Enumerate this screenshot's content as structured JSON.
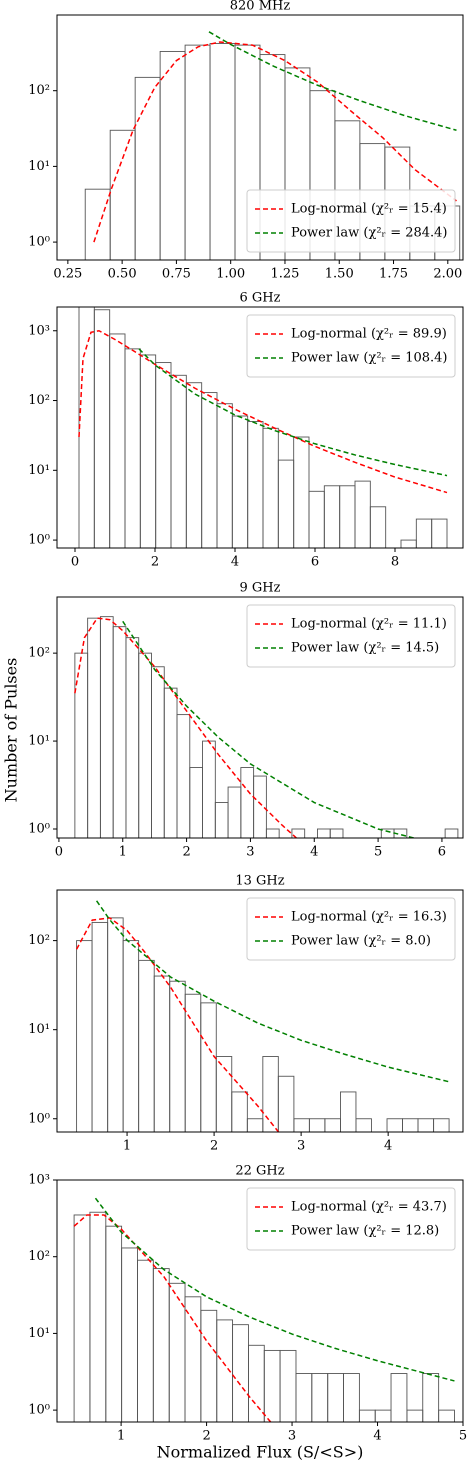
{
  "chart_data": [
    {
      "type": "histogram",
      "title": "820 MHz",
      "log_y": true,
      "legend": "lower right",
      "hist_color": "#555555",
      "bins": [
        0.33,
        0.445,
        0.56,
        0.675,
        0.79,
        0.905,
        1.02,
        1.135,
        1.25,
        1.365,
        1.48,
        1.595,
        1.71,
        1.825,
        1.94,
        2.055
      ],
      "counts": [
        5,
        30,
        150,
        330,
        400,
        420,
        400,
        300,
        200,
        100,
        40,
        20,
        18,
        3,
        3
      ],
      "series": [
        {
          "name": "Log-normal (χ²ᵣ = 15.4)",
          "color": "#ff0000",
          "x": [
            0.37,
            0.45,
            0.55,
            0.65,
            0.75,
            0.85,
            0.95,
            1.1,
            1.25,
            1.4,
            1.55,
            1.7,
            1.85,
            2.04
          ],
          "values": [
            1,
            5,
            30,
            110,
            250,
            380,
            440,
            400,
            250,
            130,
            55,
            24,
            9,
            3.5
          ]
        },
        {
          "name": "Power law (χ²ᵣ = 284.4)",
          "color": "#008000",
          "x": [
            0.9,
            1.0,
            1.2,
            1.4,
            1.6,
            1.8,
            2.04
          ],
          "values": [
            600,
            408,
            209,
            118,
            73,
            47,
            30
          ]
        }
      ],
      "xlim": [
        0.2,
        2.07
      ],
      "xticks": [
        0.25,
        {
          "value": 0.5,
          "label": "0.50"
        },
        0.75,
        {
          "value": 1,
          "label": "1.00"
        },
        1.25,
        {
          "value": 1.5,
          "label": "1.50"
        },
        1.75,
        {
          "value": 2,
          "label": "2.00"
        }
      ],
      "ylim": [
        0.58,
        1000
      ],
      "yticks": [
        {
          "value": 1,
          "label": "10⁰"
        },
        {
          "value": 10,
          "label": "10¹"
        },
        {
          "value": 100,
          "label": "10²"
        }
      ]
    },
    {
      "type": "histogram",
      "title": "6 GHz",
      "log_y": true,
      "legend": "upper right",
      "hist_color": "#555555",
      "bins": [
        0.1,
        0.483,
        0.867,
        1.25,
        1.633,
        2.017,
        2.4,
        2.783,
        3.167,
        3.55,
        3.933,
        4.317,
        4.7,
        5.083,
        5.467,
        5.85,
        6.233,
        6.617,
        7,
        7.383,
        7.767,
        8.15,
        8.533,
        8.917,
        9.3
      ],
      "counts": [
        3000,
        2000,
        900,
        550,
        450,
        350,
        230,
        180,
        130,
        90,
        60,
        50,
        40,
        14,
        30,
        5,
        6,
        6,
        7,
        3,
        0,
        1,
        2,
        2
      ],
      "series": [
        {
          "name": "Log-normal (χ²ᵣ = 89.9)",
          "color": "#ff0000",
          "x": [
            0.1,
            0.2,
            0.4,
            0.6,
            1,
            1.5,
            2,
            3,
            4,
            5,
            6,
            7,
            8,
            9.3
          ],
          "values": [
            30,
            400,
            950,
            1000,
            750,
            500,
            330,
            150,
            75,
            40,
            22,
            13,
            8,
            4.8
          ]
        },
        {
          "name": "Power law (χ²ᵣ = 108.4)",
          "color": "#008000",
          "x": [
            1.6,
            2,
            3,
            4,
            5,
            6,
            7,
            8,
            9.3
          ],
          "values": [
            550,
            323,
            124,
            62,
            37,
            24,
            16.6,
            12.1,
            8.4
          ]
        }
      ],
      "xlim": [
        -0.45,
        9.7
      ],
      "xticks": [
        0,
        2,
        4,
        6,
        8
      ],
      "ylim": [
        0.77,
        2190
      ],
      "yticks": [
        {
          "value": 1,
          "label": "10⁰"
        },
        {
          "value": 10,
          "label": "10¹"
        },
        {
          "value": 100,
          "label": "10²"
        },
        {
          "value": 1000,
          "label": "10³"
        }
      ]
    },
    {
      "type": "histogram",
      "title": "9 GHz",
      "log_y": true,
      "legend": "upper right",
      "hist_color": "#555555",
      "ylabel": "Number of Pulses",
      "bins": [
        0.25,
        0.45,
        0.65,
        0.85,
        1.05,
        1.25,
        1.45,
        1.65,
        1.85,
        2.05,
        2.25,
        2.45,
        2.65,
        2.85,
        3.05,
        3.25,
        3.45,
        3.65,
        3.85,
        4.05,
        4.25,
        4.45,
        4.65,
        4.85,
        5.05,
        5.25,
        5.45,
        5.65,
        5.85,
        6.05,
        6.25
      ],
      "counts": [
        100,
        250,
        260,
        200,
        150,
        100,
        70,
        40,
        20,
        5,
        10,
        2,
        3,
        5,
        4,
        1,
        0,
        1,
        0,
        1,
        1,
        0,
        0,
        0,
        1,
        1,
        0,
        0,
        0,
        1
      ],
      "series": [
        {
          "name": "Log-normal (χ²ᵣ = 11.1)",
          "color": "#ff0000",
          "x": [
            0.25,
            0.4,
            0.6,
            0.8,
            1,
            1.5,
            2,
            2.5,
            3,
            3.5,
            3.8
          ],
          "values": [
            35,
            150,
            250,
            240,
            180,
            70,
            22,
            7,
            2.5,
            1.1,
            0.7
          ]
        },
        {
          "name": "Power law (χ²ᵣ = 14.5)",
          "color": "#008000",
          "x": [
            1,
            1.5,
            2,
            2.5,
            3,
            4,
            5,
            5.85
          ],
          "values": [
            230,
            65,
            25,
            11,
            5.5,
            2,
            1,
            0.7
          ]
        }
      ],
      "xlim": [
        -0.03,
        6.33
      ],
      "xticks": [
        0,
        1,
        2,
        3,
        4,
        5,
        6
      ],
      "ylim": [
        0.79,
        435
      ],
      "yticks": [
        {
          "value": 1,
          "label": "10⁰"
        },
        {
          "value": 10,
          "label": "10¹"
        },
        {
          "value": 100,
          "label": "10²"
        }
      ]
    },
    {
      "type": "histogram",
      "title": "13 GHz",
      "log_y": true,
      "legend": "upper right",
      "hist_color": "#555555",
      "bins": [
        0.42,
        0.598,
        0.777,
        0.955,
        1.133,
        1.312,
        1.49,
        1.668,
        1.847,
        2.025,
        2.203,
        2.382,
        2.56,
        2.738,
        2.917,
        3.095,
        3.273,
        3.452,
        3.63,
        3.808,
        3.987,
        4.165,
        4.343,
        4.522,
        4.7
      ],
      "counts": [
        100,
        160,
        180,
        100,
        60,
        40,
        35,
        25,
        20,
        5,
        2,
        1,
        5,
        3,
        1,
        1,
        1,
        2,
        1,
        0,
        1,
        1,
        1,
        1
      ],
      "series": [
        {
          "name": "Log-normal (χ²ᵣ = 16.3)",
          "color": "#ff0000",
          "x": [
            0.42,
            0.6,
            0.8,
            1,
            1.2,
            1.5,
            2,
            2.5,
            2.8
          ],
          "values": [
            80,
            170,
            180,
            130,
            75,
            30,
            5,
            1.4,
            0.6
          ]
        },
        {
          "name": "Power law (χ²ᵣ = 8.0)",
          "color": "#008000",
          "x": [
            0.65,
            0.8,
            1,
            1.5,
            2,
            2.5,
            3,
            3.5,
            4,
            4.7
          ],
          "values": [
            280,
            172,
            101,
            39,
            20.9,
            11.9,
            7.6,
            5.3,
            3.8,
            2.6
          ]
        }
      ],
      "xlim": [
        0.195,
        4.86
      ],
      "xticks": [
        1,
        2,
        3,
        4
      ],
      "ylim": [
        0.71,
        370
      ],
      "yticks": [
        {
          "value": 1,
          "label": "10⁰"
        },
        {
          "value": 10,
          "label": "10¹"
        },
        {
          "value": 100,
          "label": "10²"
        }
      ]
    },
    {
      "type": "histogram",
      "title": "22 GHz",
      "log_y": true,
      "legend": "upper right",
      "hist_color": "#555555",
      "xlabel": "Normalized Flux (S/<S>)",
      "bins": [
        0.45,
        0.635,
        0.821,
        1.006,
        1.192,
        1.377,
        1.563,
        1.748,
        1.933,
        2.119,
        2.304,
        2.49,
        2.675,
        2.86,
        3.046,
        3.231,
        3.417,
        3.602,
        3.788,
        3.973,
        4.158,
        4.344,
        4.529,
        4.715,
        4.9
      ],
      "counts": [
        350,
        380,
        250,
        130,
        90,
        70,
        45,
        30,
        20,
        15,
        13,
        7,
        6,
        6,
        3,
        3,
        3,
        3,
        1,
        1,
        3,
        1,
        3,
        1
      ],
      "series": [
        {
          "name": "Log-normal (χ²ᵣ = 43.7)",
          "color": "#ff0000",
          "x": [
            0.45,
            0.6,
            0.8,
            1,
            1.2,
            1.5,
            2,
            2.5,
            2.8
          ],
          "values": [
            250,
            350,
            350,
            230,
            130,
            55,
            8,
            1.5,
            0.6
          ]
        },
        {
          "name": "Power law (χ²ᵣ = 12.8)",
          "color": "#008000",
          "x": [
            0.7,
            1,
            1.5,
            2,
            2.5,
            3,
            3.5,
            4,
            4.9
          ],
          "values": [
            580,
            210,
            68,
            30,
            16.4,
            9.8,
            6.4,
            4.4,
            2.4
          ]
        }
      ],
      "xlim": [
        0.25,
        5.0
      ],
      "xticks": [
        1,
        2,
        3,
        4,
        5
      ],
      "ylim": [
        0.7,
        1000
      ],
      "yticks": [
        {
          "value": 1,
          "label": "10⁰"
        },
        {
          "value": 10,
          "label": "10¹"
        },
        {
          "value": 100,
          "label": "10²"
        },
        {
          "value": 1000,
          "label": "10³"
        }
      ]
    }
  ]
}
